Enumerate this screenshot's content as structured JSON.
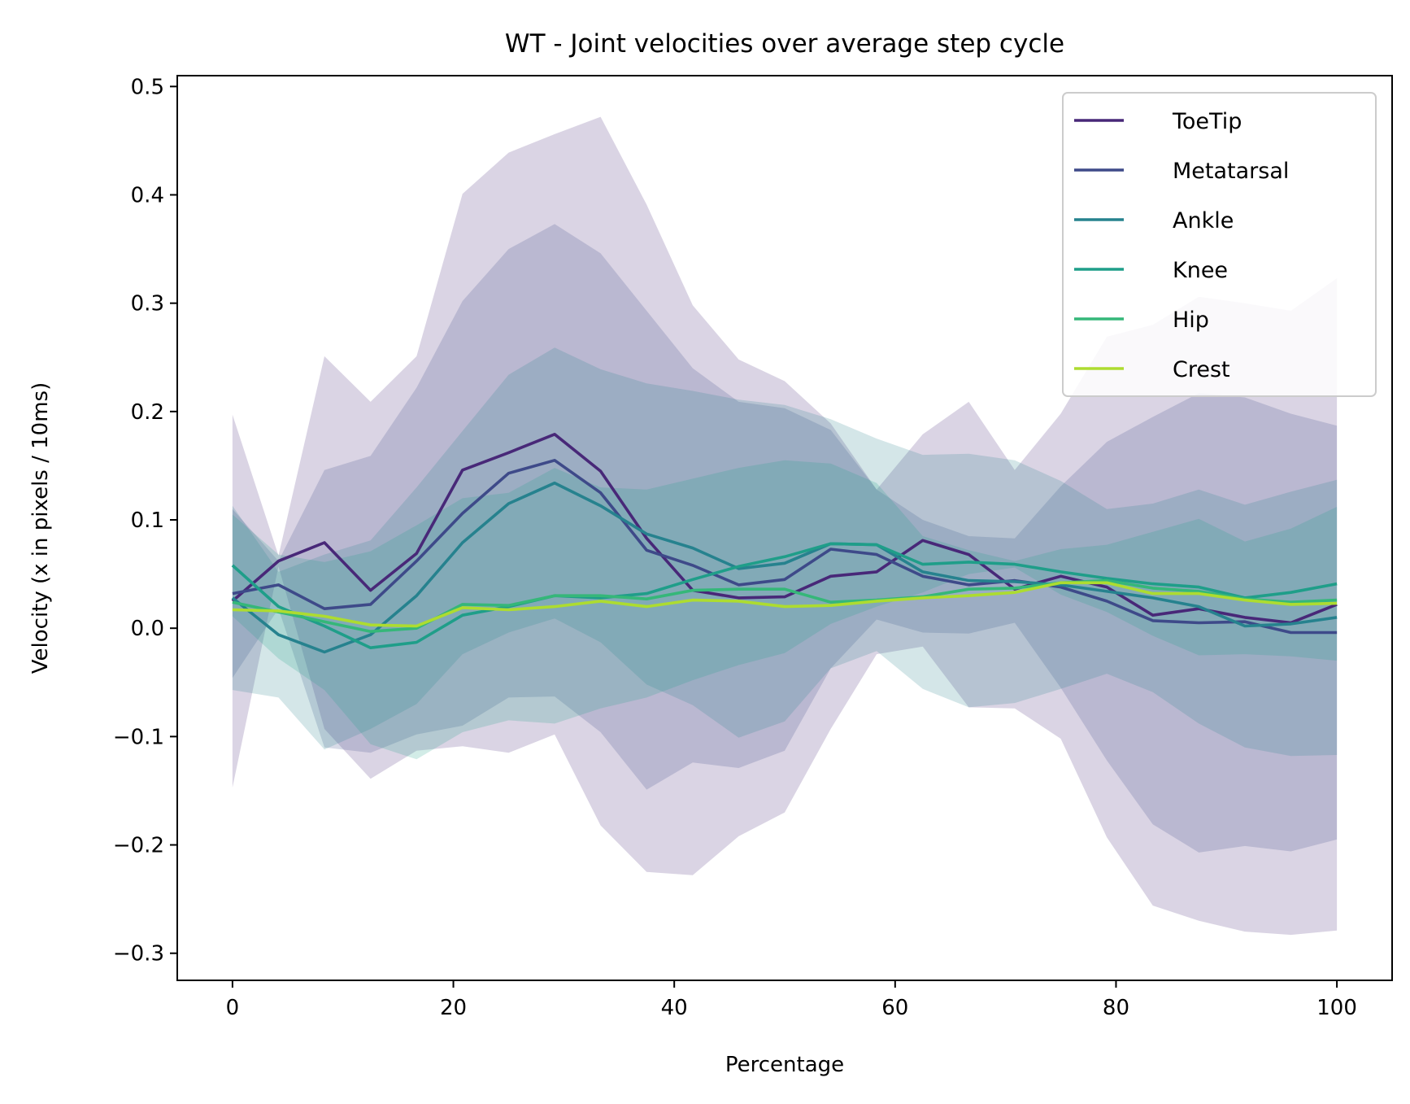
{
  "chart_data": {
    "type": "line",
    "title": "WT - Joint velocities over average step cycle",
    "xlabel": "Percentage",
    "ylabel": "Velocity (x in pixels / 10ms)",
    "xlim": [
      -5,
      105
    ],
    "ylim": [
      -0.325,
      0.51
    ],
    "xticks": [
      0,
      20,
      40,
      60,
      80,
      100
    ],
    "xtick_labels": [
      "0",
      "20",
      "40",
      "60",
      "80",
      "100"
    ],
    "yticks": [
      -0.3,
      -0.2,
      -0.1,
      0.0,
      0.1,
      0.2,
      0.3,
      0.4,
      0.5
    ],
    "ytick_labels": [
      "−0.3",
      "−0.2",
      "−0.1",
      "0.0",
      "0.1",
      "0.2",
      "0.3",
      "0.4",
      "0.5"
    ],
    "grid": false,
    "legend_position": "top-right",
    "shaded_band": "mean ± variability",
    "x": [
      0,
      4.17,
      8.33,
      12.5,
      16.67,
      20.83,
      25,
      29.17,
      33.33,
      37.5,
      41.67,
      45.83,
      50,
      54.17,
      58.33,
      62.5,
      66.67,
      70.83,
      75,
      79.17,
      83.33,
      87.5,
      91.67,
      95.83,
      100
    ],
    "series": [
      {
        "name": "ToeTip",
        "color": "#482878",
        "values": [
          0.025,
          0.062,
          0.079,
          0.035,
          0.069,
          0.146,
          0.162,
          0.179,
          0.145,
          0.083,
          0.035,
          0.028,
          0.029,
          0.048,
          0.052,
          0.081,
          0.068,
          0.036,
          0.048,
          0.038,
          0.012,
          0.018,
          0.01,
          0.005,
          0.022
        ],
        "upper": [
          0.197,
          0.067,
          0.251,
          0.209,
          0.251,
          0.401,
          0.439,
          0.456,
          0.472,
          0.391,
          0.298,
          0.248,
          0.228,
          0.189,
          0.128,
          0.179,
          0.209,
          0.146,
          0.198,
          0.269,
          0.28,
          0.306,
          0.3,
          0.293,
          0.323
        ],
        "lower": [
          -0.147,
          0.057,
          -0.093,
          -0.139,
          -0.113,
          -0.109,
          -0.115,
          -0.098,
          -0.182,
          -0.225,
          -0.228,
          -0.192,
          -0.17,
          -0.093,
          -0.024,
          -0.017,
          -0.073,
          -0.074,
          -0.102,
          -0.193,
          -0.256,
          -0.27,
          -0.28,
          -0.283,
          -0.279
        ]
      },
      {
        "name": "Metatarsal",
        "color": "#3e4a89",
        "values": [
          0.032,
          0.04,
          0.018,
          0.022,
          0.062,
          0.106,
          0.143,
          0.155,
          0.125,
          0.072,
          0.058,
          0.04,
          0.045,
          0.073,
          0.068,
          0.048,
          0.04,
          0.044,
          0.038,
          0.025,
          0.007,
          0.005,
          0.006,
          -0.004,
          -0.004
        ],
        "upper": [
          0.11,
          0.062,
          0.146,
          0.159,
          0.222,
          0.302,
          0.35,
          0.373,
          0.346,
          0.293,
          0.24,
          0.209,
          0.203,
          0.183,
          0.128,
          0.1,
          0.085,
          0.083,
          0.131,
          0.172,
          0.195,
          0.217,
          0.213,
          0.198,
          0.187
        ]
      },
      {
        "name": "Ankle",
        "color": "#26828e",
        "values": [
          0.028,
          -0.006,
          -0.022,
          -0.006,
          0.03,
          0.079,
          0.115,
          0.134,
          0.113,
          0.087,
          0.074,
          0.055,
          0.06,
          0.078,
          0.077,
          0.052,
          0.044,
          0.043,
          0.04,
          0.034,
          0.028,
          0.02,
          0.002,
          0.004,
          0.01
        ],
        "upper": [
          0.113,
          0.052,
          0.068,
          0.081,
          0.13,
          0.182,
          0.234,
          0.259,
          0.239,
          0.226,
          0.219,
          0.211,
          0.206,
          0.193,
          0.175,
          0.16,
          0.161,
          0.155,
          0.136,
          0.11,
          0.115,
          0.128,
          0.114,
          0.126,
          0.137
        ]
      },
      {
        "name": "Knee",
        "color": "#1f9e89",
        "values": [
          0.058,
          0.02,
          0.002,
          -0.018,
          -0.013,
          0.012,
          0.02,
          0.03,
          0.028,
          0.032,
          0.045,
          0.057,
          0.066,
          0.078,
          0.077,
          0.059,
          0.061,
          0.059,
          0.052,
          0.046,
          0.041,
          0.038,
          0.028,
          0.033,
          0.041
        ],
        "upper": [
          0.105,
          0.068,
          0.061,
          0.071,
          0.095,
          0.12,
          0.125,
          0.148,
          0.13,
          0.128,
          0.138,
          0.148,
          0.155,
          0.152,
          0.134,
          0.085,
          0.072,
          0.062,
          0.073,
          0.077,
          0.089,
          0.101,
          0.08,
          0.092,
          0.112
        ]
      },
      {
        "name": "Hip",
        "color": "#35b779",
        "values": [
          0.024,
          0.015,
          0.006,
          -0.003,
          0.0,
          0.022,
          0.021,
          0.03,
          0.03,
          0.027,
          0.035,
          0.036,
          0.036,
          0.024,
          0.026,
          0.029,
          0.036,
          0.037,
          0.042,
          0.044,
          0.037,
          0.034,
          0.027,
          0.024,
          0.026
        ]
      },
      {
        "name": "Crest",
        "color": "#addc30",
        "values": [
          0.017,
          0.016,
          0.011,
          0.003,
          0.002,
          0.019,
          0.017,
          0.02,
          0.025,
          0.02,
          0.026,
          0.025,
          0.02,
          0.021,
          0.025,
          0.028,
          0.03,
          0.033,
          0.042,
          0.042,
          0.032,
          0.032,
          0.026,
          0.022,
          0.023
        ]
      }
    ]
  }
}
